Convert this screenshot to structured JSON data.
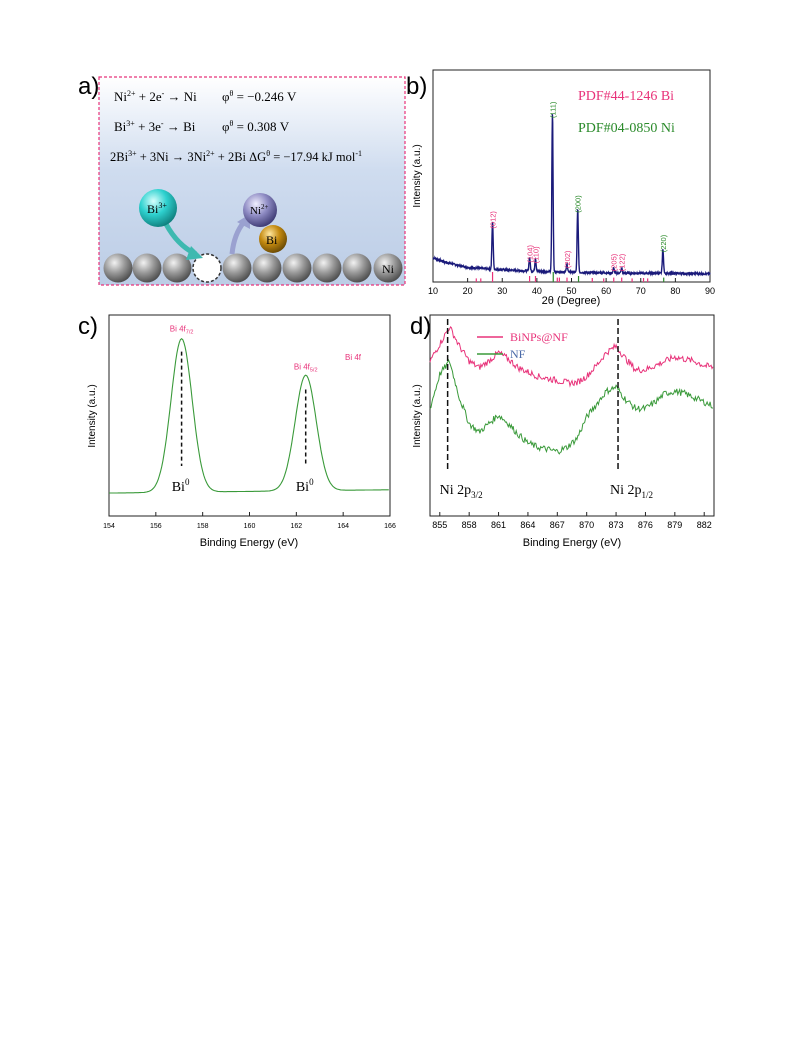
{
  "panel_labels": {
    "a": "a)",
    "b": "b)",
    "c": "c)",
    "d": "d)"
  },
  "panel_a": {
    "eq1": {
      "species": [
        "Ni",
        "2+",
        " + 2e",
        "-",
        " → Ni"
      ],
      "potential": [
        "φ",
        "θ",
        " = −0.246 V"
      ]
    },
    "eq2": {
      "species": [
        "Bi",
        "3+",
        " + 3e",
        "-",
        " → Bi"
      ],
      "potential": [
        "φ",
        "θ",
        " = 0.308 V"
      ]
    },
    "eq3": {
      "parts": [
        "2Bi",
        "3+",
        " + 3Ni → 3Ni",
        "2+",
        " + 2Bi  ΔG",
        "θ",
        " = −17.94 kJ mol",
        "-1"
      ]
    },
    "bi_ion": [
      "Bi",
      "3+"
    ],
    "ni_ion": [
      "Ni",
      "2+"
    ],
    "bi_atom": "Bi",
    "ni_label": "Ni",
    "colors": {
      "frame": "#e8337a",
      "bi_ion": "#2ed1cf",
      "ni_ion": "#8f8cc4",
      "bi_atom": "#c48a10",
      "sphere": "#8a8a8a",
      "arrow": "#3db9b0"
    }
  },
  "chart_data": [
    {
      "panel": "b",
      "type": "line",
      "xlabel": "2θ (Degree)",
      "ylabel": "Intensity (a.u.)",
      "xlim": [
        10,
        90
      ],
      "xticks": [
        "10",
        "20",
        "30",
        "40",
        "50",
        "60",
        "70",
        "80",
        "90"
      ],
      "legend": [
        {
          "name": "PDF#44-1246 Bi",
          "color": "#e8337a"
        },
        {
          "name": "PDF#04-0850 Ni",
          "color": "#2a8a2a"
        }
      ],
      "line_color": "#1a1a7a",
      "baseline": {
        "x": [
          10,
          14,
          20,
          30,
          40,
          50,
          60,
          70,
          80,
          90
        ],
        "y": [
          0.14,
          0.11,
          0.08,
          0.065,
          0.055,
          0.05,
          0.045,
          0.043,
          0.042,
          0.04
        ]
      },
      "peaks": [
        {
          "x": 27.2,
          "y": 0.3,
          "label": "(012)",
          "color": "#e8337a"
        },
        {
          "x": 37.9,
          "y": 0.085,
          "label": "(104)",
          "color": "#e8337a"
        },
        {
          "x": 39.6,
          "y": 0.08,
          "label": "(110)",
          "color": "#e8337a"
        },
        {
          "x": 44.5,
          "y": 1.0,
          "label": "(111)",
          "color": "#2a8a2a"
        },
        {
          "x": 48.7,
          "y": 0.05,
          "label": "(202)",
          "color": "#e8337a"
        },
        {
          "x": 51.8,
          "y": 0.4,
          "label": "(200)",
          "color": "#2a8a2a"
        },
        {
          "x": 62.2,
          "y": 0.03,
          "label": "(205)",
          "color": "#e8337a"
        },
        {
          "x": 64.5,
          "y": 0.03,
          "label": "(122)",
          "color": "#e8337a"
        },
        {
          "x": 76.4,
          "y": 0.15,
          "label": "(220)",
          "color": "#2a8a2a"
        }
      ],
      "ref_bi": [
        22.5,
        23.8,
        27.2,
        37.9,
        39.6,
        45.9,
        46.5,
        48.7,
        56.0,
        59.3,
        62.2,
        64.5,
        67.5,
        70.8,
        72.0
      ],
      "ref_bi_height": [
        0.2,
        0.2,
        1.0,
        0.5,
        0.5,
        0.3,
        0.3,
        0.3,
        0.25,
        0.2,
        0.3,
        0.3,
        0.2,
        0.25,
        0.2
      ],
      "ref_ni": [
        44.5,
        51.8,
        76.4
      ],
      "ref_ni_height": [
        1.0,
        0.5,
        0.3
      ]
    },
    {
      "panel": "c",
      "type": "line",
      "xlabel": "Binding Energy (eV)",
      "ylabel": "Intensity (a.u.)",
      "xlim": [
        154,
        166
      ],
      "xticks": [
        "154",
        "156",
        "158",
        "160",
        "162",
        "164",
        "166"
      ],
      "tag": "Bi 4f",
      "line_color": "#3a9a3a",
      "peaks": [
        {
          "x": 157.1,
          "label": [
            "Bi 4f",
            "7/2"
          ],
          "marker": [
            "Bi",
            "0"
          ]
        },
        {
          "x": 162.4,
          "label": [
            "Bi 4f",
            "5/2"
          ],
          "marker": [
            "Bi",
            "0"
          ]
        }
      ],
      "series": {
        "x_start": 154,
        "x_end": 166,
        "baseline_start": 0.03,
        "baseline_end": 0.05,
        "p1_height": 0.93,
        "p2_height": 0.7,
        "width": 0.45
      }
    },
    {
      "panel": "d",
      "type": "line",
      "xlabel": "Binding Energy (eV)",
      "ylabel": "Intensity (a.u.)",
      "xlim": [
        854,
        883
      ],
      "xticks": [
        "855",
        "858",
        "861",
        "864",
        "867",
        "870",
        "873",
        "876",
        "879",
        "882"
      ],
      "series": [
        {
          "name": "BiNPs@NF",
          "color": "#e8337a",
          "x": [
            854,
            855,
            856,
            857,
            858,
            859,
            860,
            861,
            862,
            863,
            864,
            865,
            866,
            867,
            868,
            869,
            870,
            871,
            872,
            873,
            874,
            875,
            876,
            877,
            878,
            879,
            880,
            881,
            882,
            883
          ],
          "y": [
            0.72,
            0.8,
            0.88,
            0.79,
            0.72,
            0.69,
            0.72,
            0.76,
            0.73,
            0.69,
            0.67,
            0.65,
            0.64,
            0.63,
            0.62,
            0.62,
            0.65,
            0.7,
            0.76,
            0.79,
            0.73,
            0.68,
            0.68,
            0.7,
            0.72,
            0.74,
            0.73,
            0.72,
            0.7,
            0.69
          ]
        },
        {
          "name": "NF",
          "color": "#3a9a3a",
          "x": [
            854,
            855,
            856,
            857,
            858,
            859,
            860,
            861,
            862,
            863,
            864,
            865,
            866,
            867,
            868,
            869,
            870,
            871,
            872,
            873,
            874,
            875,
            876,
            877,
            878,
            879,
            880,
            881,
            882,
            883
          ],
          "y": [
            0.5,
            0.66,
            0.72,
            0.55,
            0.43,
            0.39,
            0.43,
            0.47,
            0.43,
            0.38,
            0.34,
            0.32,
            0.31,
            0.3,
            0.32,
            0.36,
            0.46,
            0.52,
            0.58,
            0.6,
            0.54,
            0.5,
            0.5,
            0.53,
            0.57,
            0.58,
            0.57,
            0.55,
            0.53,
            0.51
          ]
        }
      ],
      "markers": [
        {
          "x": 855.8,
          "label": [
            "Ni 2p",
            "3/2"
          ]
        },
        {
          "x": 873.2,
          "label": [
            "Ni 2p",
            "1/2"
          ]
        }
      ]
    }
  ]
}
